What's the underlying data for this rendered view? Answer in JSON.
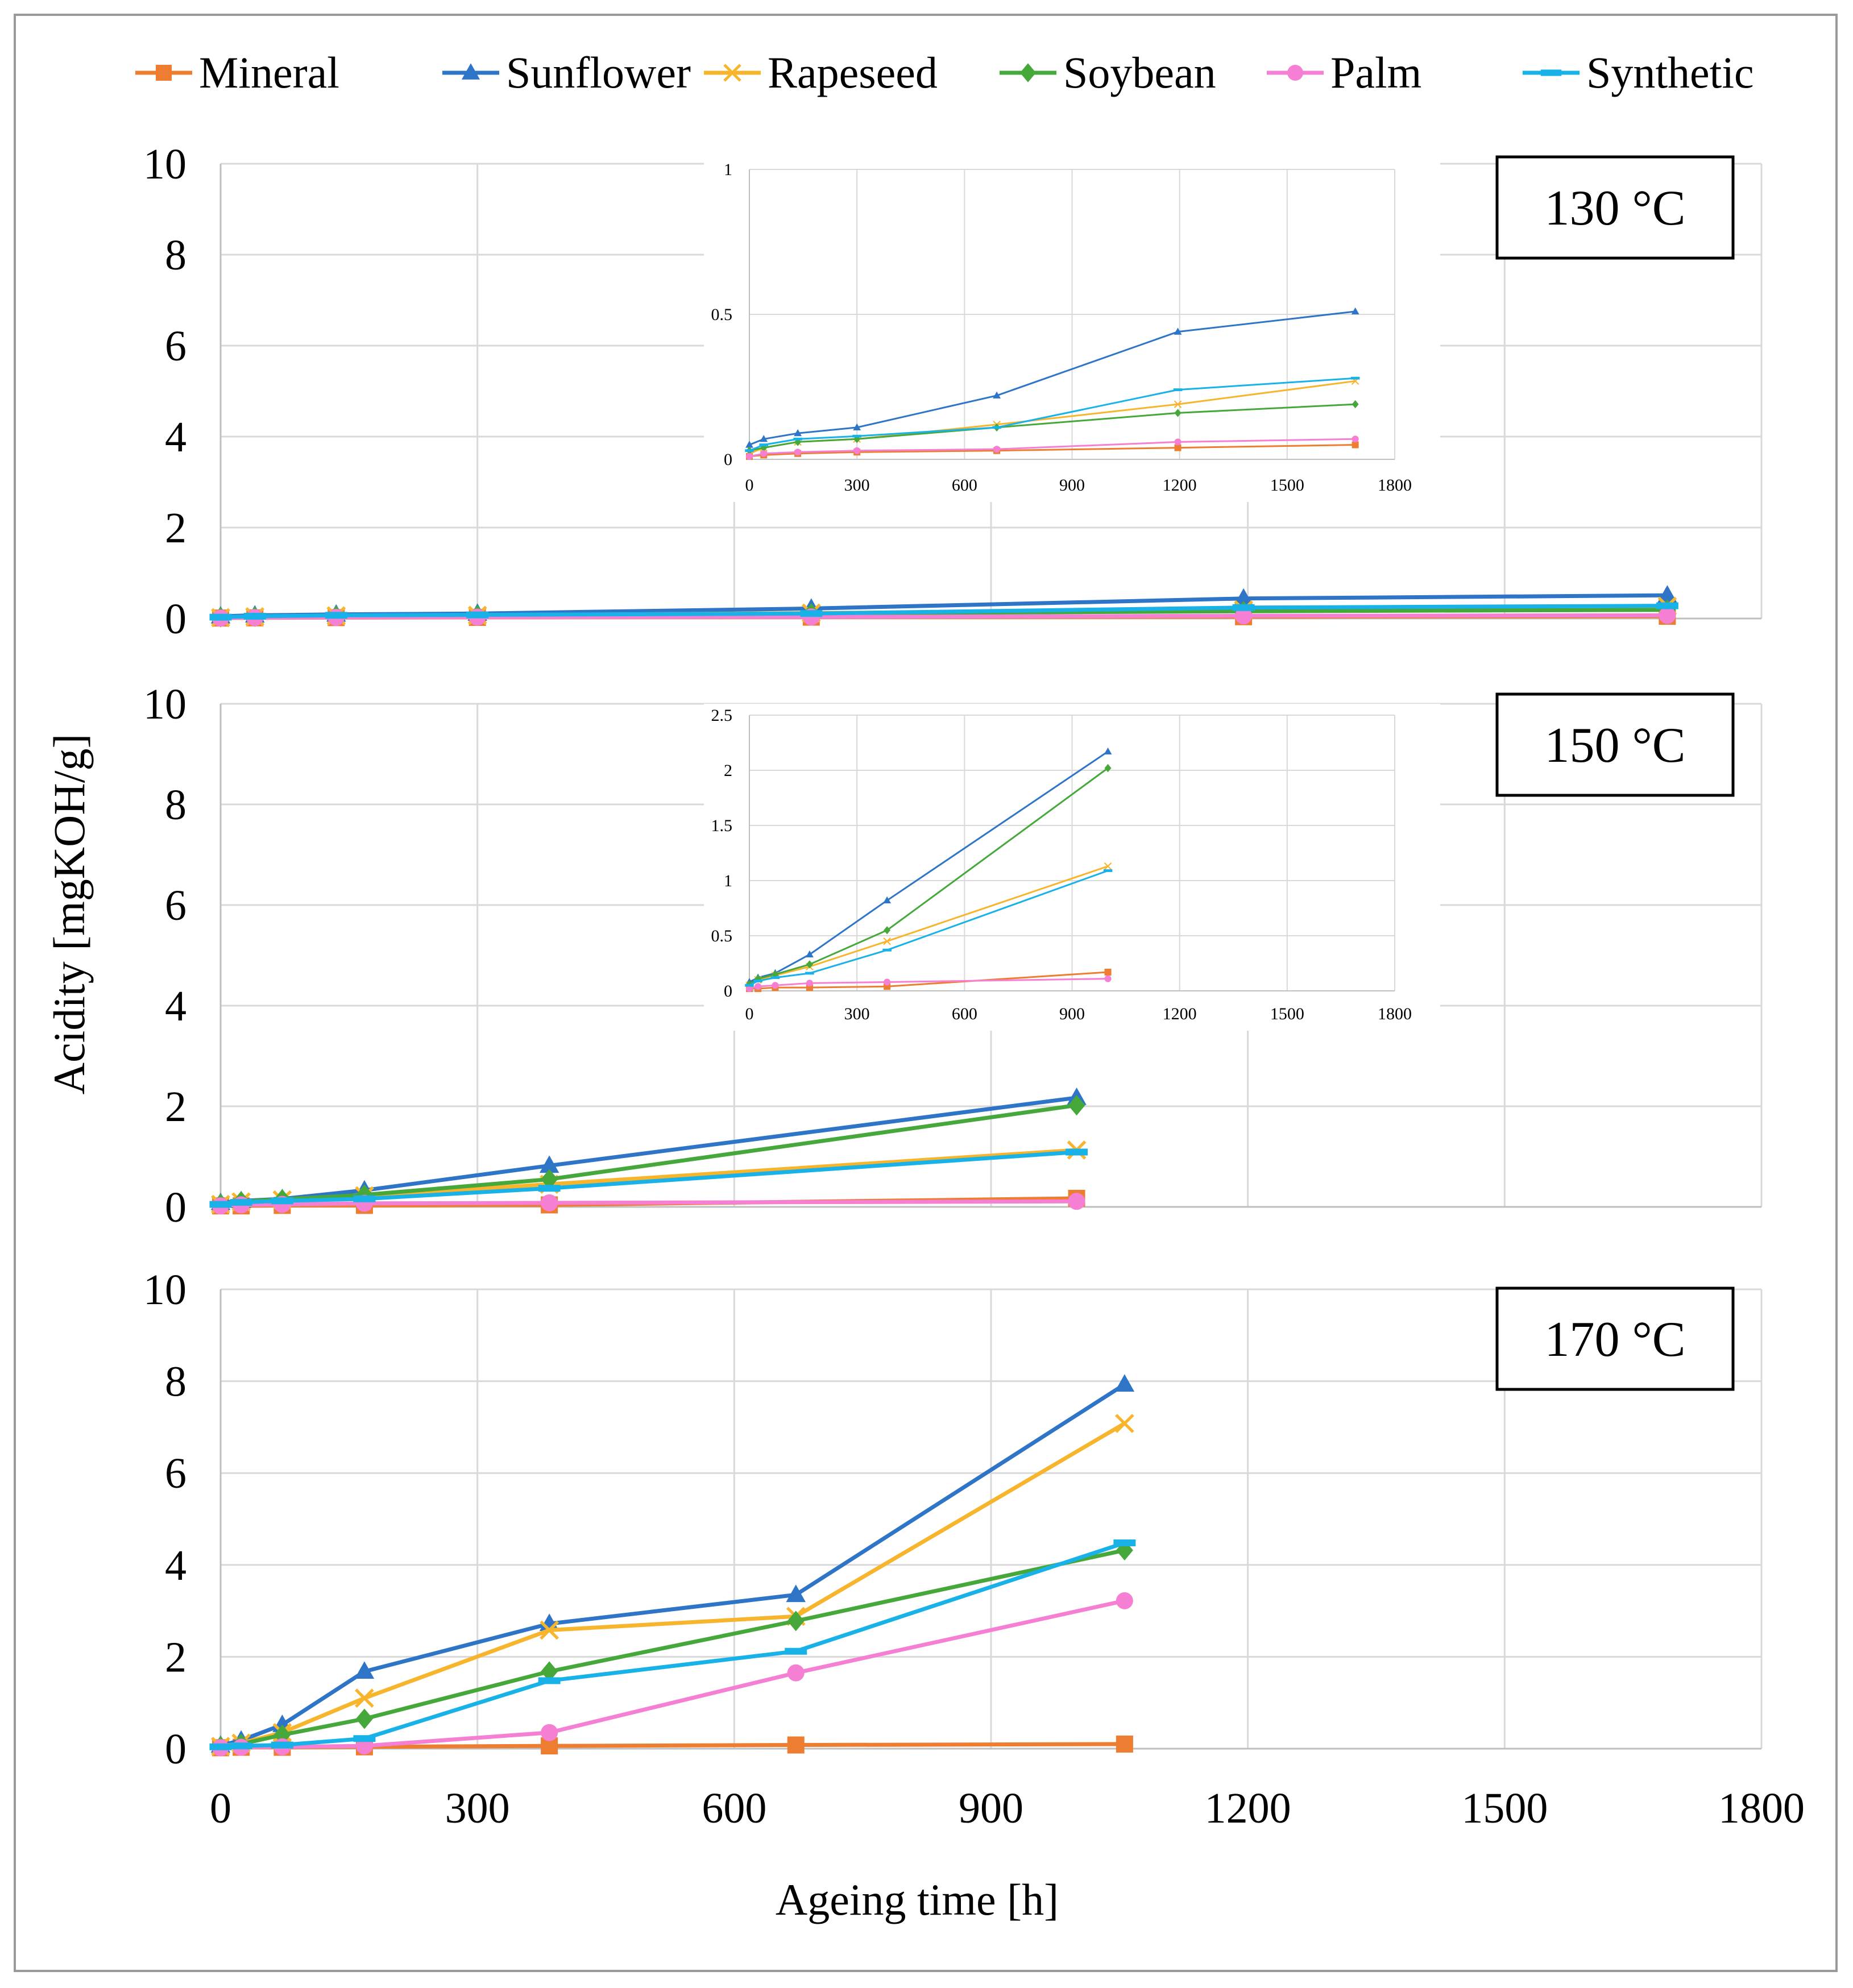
{
  "chart_data": {
    "type": "line",
    "xlabel": "Ageing time [h]",
    "ylabel": "Acidity [mgKOH/g]",
    "x_ticks": [
      "0",
      "300",
      "600",
      "900",
      "1200",
      "1500",
      "1800"
    ],
    "xlim": [
      0,
      1800
    ],
    "legend_position": "top",
    "legend": [
      {
        "name": "Mineral",
        "color": "#ED7D31",
        "marker": "square"
      },
      {
        "name": "Sunflower",
        "color": "#2E75C8",
        "marker": "triangle"
      },
      {
        "name": "Rapeseed",
        "color": "#F7B52E",
        "marker": "x"
      },
      {
        "name": "Soybean",
        "color": "#46A83A",
        "marker": "diamond"
      },
      {
        "name": "Palm",
        "color": "#F57FD3",
        "marker": "circle"
      },
      {
        "name": "Synthetic",
        "color": "#19B2E8",
        "marker": "dash"
      }
    ],
    "panels": [
      {
        "label": "130 °C",
        "ylim": [
          0,
          10
        ],
        "y_ticks": [
          "0",
          "2",
          "4",
          "6",
          "8",
          "10"
        ],
        "series": [
          {
            "name": "Mineral",
            "x": [
              0,
              40,
              135,
              300,
              690,
              1195,
              1690
            ],
            "y": [
              0.01,
              0.015,
              0.02,
              0.025,
              0.03,
              0.04,
              0.05
            ]
          },
          {
            "name": "Sunflower",
            "x": [
              0,
              40,
              135,
              300,
              690,
              1195,
              1690
            ],
            "y": [
              0.05,
              0.07,
              0.09,
              0.11,
              0.22,
              0.44,
              0.51
            ]
          },
          {
            "name": "Rapeseed",
            "x": [
              0,
              40,
              135,
              300,
              690,
              1195,
              1690
            ],
            "y": [
              0.02,
              0.04,
              0.06,
              0.07,
              0.12,
              0.19,
              0.27
            ]
          },
          {
            "name": "Soybean",
            "x": [
              0,
              40,
              135,
              300,
              690,
              1195,
              1690
            ],
            "y": [
              0.03,
              0.04,
              0.06,
              0.07,
              0.11,
              0.16,
              0.19
            ]
          },
          {
            "name": "Palm",
            "x": [
              0,
              40,
              135,
              300,
              690,
              1195,
              1690
            ],
            "y": [
              0.01,
              0.02,
              0.025,
              0.03,
              0.035,
              0.06,
              0.07
            ]
          },
          {
            "name": "Synthetic",
            "x": [
              0,
              40,
              135,
              300,
              690,
              1195,
              1690
            ],
            "y": [
              0.03,
              0.05,
              0.07,
              0.08,
              0.11,
              0.24,
              0.28
            ]
          }
        ],
        "inset": {
          "ylim": [
            0,
            1
          ],
          "y_ticks": [
            "0",
            "0.5",
            "1"
          ],
          "x_ticks": [
            "0",
            "300",
            "600",
            "900",
            "1200",
            "1500",
            "1800"
          ]
        }
      },
      {
        "label": "150 °C",
        "ylim": [
          0,
          10
        ],
        "y_ticks": [
          "0",
          "2",
          "4",
          "6",
          "8",
          "10"
        ],
        "series": [
          {
            "name": "Mineral",
            "x": [
              0,
              24,
              72,
              168,
              384,
              1000
            ],
            "y": [
              0.02,
              0.02,
              0.03,
              0.03,
              0.04,
              0.17
            ]
          },
          {
            "name": "Sunflower",
            "x": [
              0,
              24,
              72,
              168,
              384,
              1000
            ],
            "y": [
              0.08,
              0.12,
              0.16,
              0.33,
              0.82,
              2.17
            ]
          },
          {
            "name": "Rapeseed",
            "x": [
              0,
              24,
              72,
              168,
              384,
              1000
            ],
            "y": [
              0.05,
              0.1,
              0.14,
              0.22,
              0.45,
              1.13
            ]
          },
          {
            "name": "Soybean",
            "x": [
              0,
              24,
              72,
              168,
              384,
              1000
            ],
            "y": [
              0.06,
              0.11,
              0.15,
              0.24,
              0.55,
              2.02
            ]
          },
          {
            "name": "Palm",
            "x": [
              0,
              24,
              72,
              168,
              384,
              1000
            ],
            "y": [
              0.02,
              0.04,
              0.05,
              0.07,
              0.08,
              0.11
            ]
          },
          {
            "name": "Synthetic",
            "x": [
              0,
              24,
              72,
              168,
              384,
              1000
            ],
            "y": [
              0.05,
              0.09,
              0.12,
              0.16,
              0.37,
              1.09
            ]
          }
        ],
        "inset": {
          "ylim": [
            0,
            2.5
          ],
          "y_ticks": [
            "0",
            "0.5",
            "1",
            "1.5",
            "2",
            "2.5"
          ],
          "x_ticks": [
            "0",
            "300",
            "600",
            "900",
            "1200",
            "1500",
            "1800"
          ]
        }
      },
      {
        "label": "170 °C",
        "ylim": [
          0,
          10
        ],
        "y_ticks": [
          "0",
          "2",
          "4",
          "6",
          "8",
          "10"
        ],
        "series": [
          {
            "name": "Mineral",
            "x": [
              0,
              24,
              72,
              168,
              384,
              672,
              1056
            ],
            "y": [
              0.02,
              0.03,
              0.03,
              0.04,
              0.06,
              0.08,
              0.1
            ]
          },
          {
            "name": "Sunflower",
            "x": [
              0,
              24,
              72,
              168,
              384,
              672,
              1056
            ],
            "y": [
              0.07,
              0.18,
              0.52,
              1.68,
              2.72,
              3.35,
              7.93
            ]
          },
          {
            "name": "Rapeseed",
            "x": [
              0,
              24,
              72,
              168,
              384,
              672,
              1056
            ],
            "y": [
              0.05,
              0.12,
              0.35,
              1.1,
              2.58,
              2.88,
              7.08
            ]
          },
          {
            "name": "Soybean",
            "x": [
              0,
              24,
              72,
              168,
              384,
              672,
              1056
            ],
            "y": [
              0.05,
              0.1,
              0.3,
              0.65,
              1.68,
              2.78,
              4.32
            ]
          },
          {
            "name": "Palm",
            "x": [
              0,
              24,
              72,
              168,
              384,
              672,
              1056
            ],
            "y": [
              0.02,
              0.03,
              0.04,
              0.06,
              0.35,
              1.65,
              3.22
            ]
          },
          {
            "name": "Synthetic",
            "x": [
              0,
              24,
              72,
              168,
              384,
              672,
              1056
            ],
            "y": [
              0.04,
              0.06,
              0.08,
              0.22,
              1.48,
              2.12,
              4.48
            ]
          }
        ]
      }
    ]
  }
}
